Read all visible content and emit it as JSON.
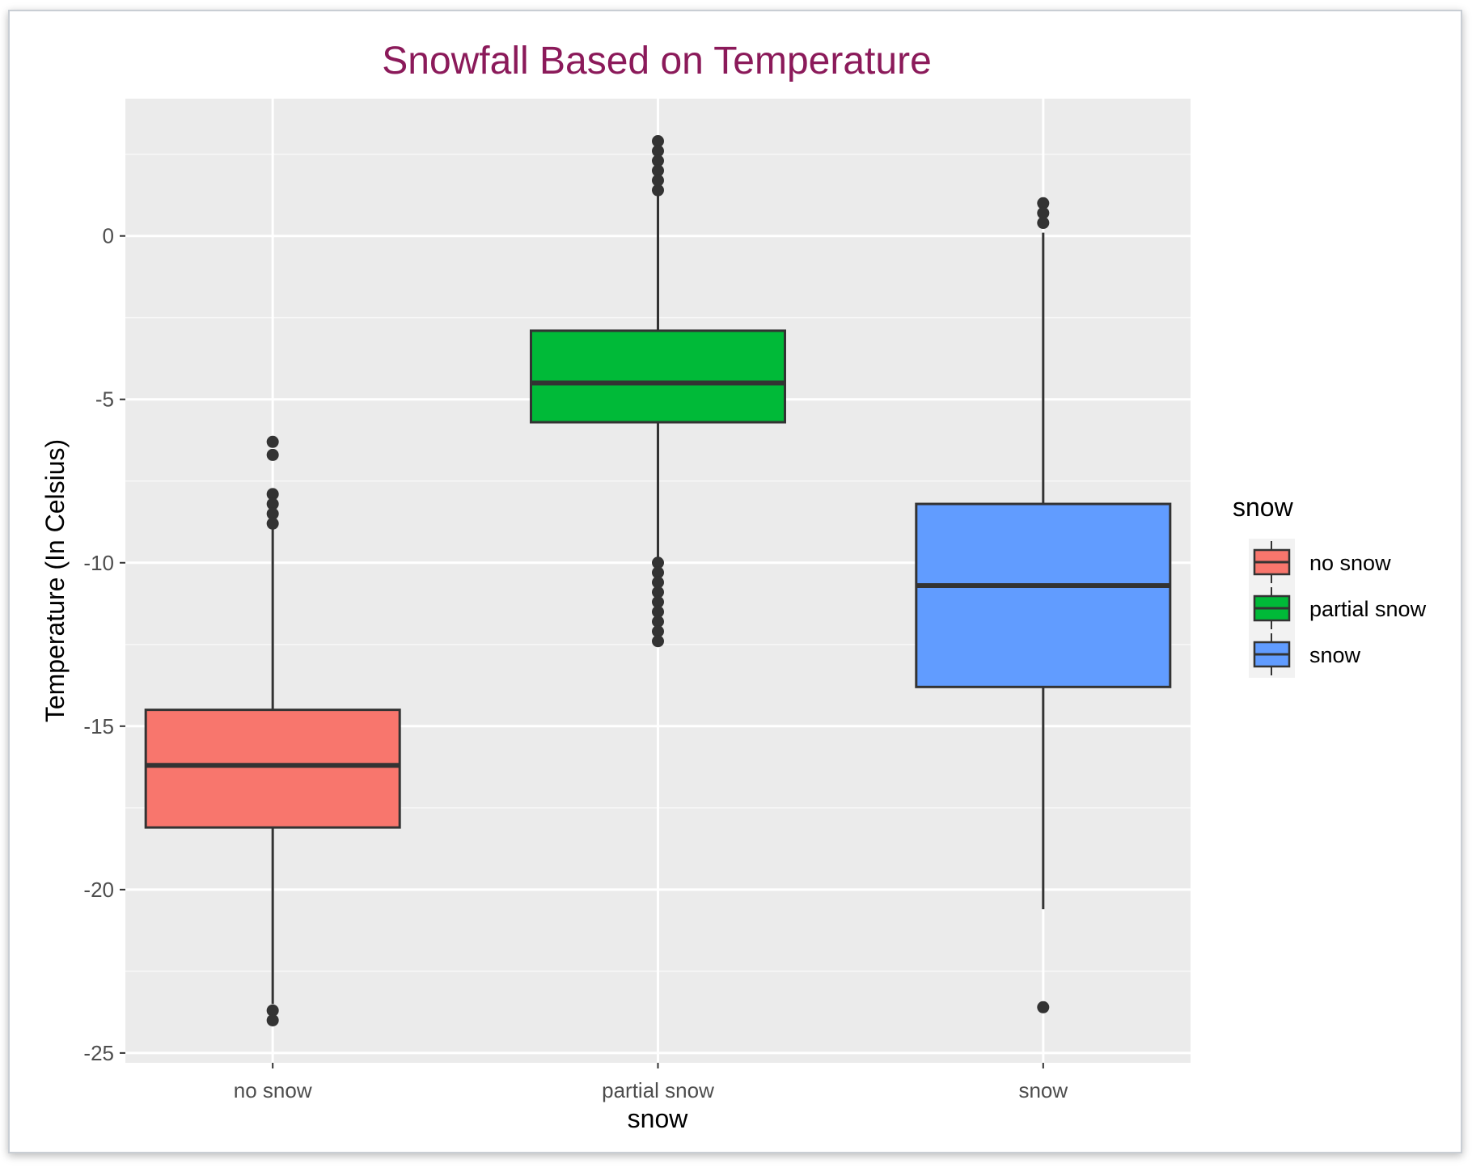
{
  "chart_data": {
    "type": "boxplot",
    "title": "Snowfall Based on Temperature",
    "xlabel": "snow",
    "ylabel": "Temperature (In Celsius)",
    "categories": [
      "no snow",
      "partial snow",
      "snow"
    ],
    "ylim": [
      -25.3,
      4.2
    ],
    "yticks": [
      0,
      -5,
      -10,
      -15,
      -20,
      -25
    ],
    "ytick_labels": [
      "0",
      "-5",
      "-10",
      "-15",
      "-20",
      "-25"
    ],
    "grid": true,
    "legend": {
      "title": "snow",
      "position": "right",
      "entries": [
        "no snow",
        "partial snow",
        "snow"
      ]
    },
    "series": [
      {
        "category": "no snow",
        "color": "#F8766D",
        "whisker_low": -23.5,
        "q1": -18.1,
        "median": -16.2,
        "q3": -14.5,
        "whisker_high": -8.9,
        "outliers": [
          -6.3,
          -6.7,
          -7.9,
          -8.2,
          -8.5,
          -8.8,
          -23.7,
          -24.0
        ]
      },
      {
        "category": "partial snow",
        "color": "#00BA38",
        "whisker_low": -12.5,
        "q1": -5.7,
        "median": -4.5,
        "q3": -2.9,
        "whisker_high": 1.3,
        "outliers": [
          2.9,
          2.6,
          2.3,
          2.0,
          1.7,
          1.4,
          -10.0,
          -10.3,
          -10.6,
          -10.9,
          -11.2,
          -11.5,
          -11.8,
          -12.1,
          -12.4
        ]
      },
      {
        "category": "snow",
        "color": "#619CFF",
        "whisker_low": -20.6,
        "q1": -13.8,
        "median": -10.7,
        "q3": -8.2,
        "whisker_high": 0.1,
        "outliers": [
          1.0,
          0.7,
          0.4,
          -23.6
        ]
      }
    ]
  }
}
